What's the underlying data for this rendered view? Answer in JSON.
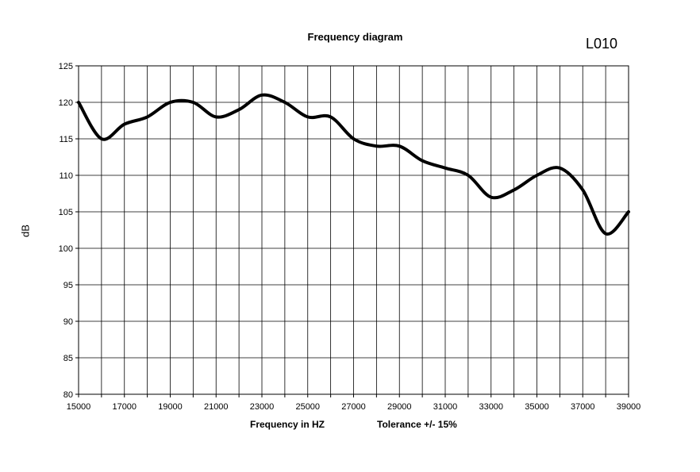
{
  "chart_data": {
    "type": "line",
    "title": "Frequency diagram",
    "model_label": "L010",
    "xlabel": "Frequency in  HZ",
    "ylabel": "dB",
    "tolerance_note": "Tolerance +/- 15%",
    "xlim": [
      15000,
      39000
    ],
    "ylim": [
      80,
      125
    ],
    "x_ticks": [
      15000,
      17000,
      19000,
      21000,
      23000,
      25000,
      27000,
      29000,
      31000,
      33000,
      35000,
      37000,
      39000
    ],
    "y_ticks": [
      80,
      85,
      90,
      95,
      100,
      105,
      110,
      115,
      120,
      125
    ],
    "grid": true,
    "series": [
      {
        "x": [
          15000,
          16000,
          17000,
          18000,
          19000,
          20000,
          21000,
          22000,
          23000,
          24000,
          25000,
          26000,
          27000,
          28000,
          29000,
          30000,
          31000,
          32000,
          33000,
          34000,
          35000,
          36000,
          37000,
          38000,
          39000
        ],
        "y": [
          120,
          115,
          117,
          118,
          120,
          120,
          118,
          119,
          121,
          120,
          118,
          118,
          115,
          114,
          114,
          112,
          111,
          110,
          107,
          108,
          110,
          111,
          108,
          102,
          105
        ]
      }
    ]
  }
}
